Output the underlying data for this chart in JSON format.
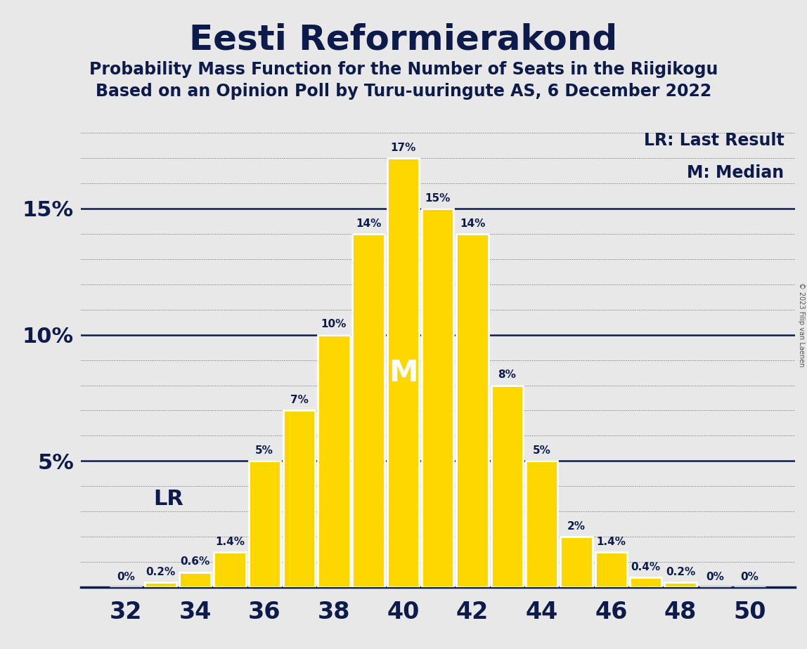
{
  "title": "Eesti Reformierakond",
  "subtitle1": "Probability Mass Function for the Number of Seats in the Riigikogu",
  "subtitle2": "Based on an Opinion Poll by Turu-uuringute AS, 6 December 2022",
  "copyright": "© 2023 Filip van Laenen",
  "seats": [
    32,
    33,
    34,
    35,
    36,
    37,
    38,
    39,
    40,
    41,
    42,
    43,
    44,
    45,
    46,
    47,
    48,
    49,
    50
  ],
  "probabilities": [
    0.0,
    0.2,
    0.6,
    1.4,
    5.0,
    7.0,
    10.0,
    14.0,
    17.0,
    15.0,
    14.0,
    8.0,
    5.0,
    2.0,
    1.4,
    0.4,
    0.2,
    0.0,
    0.0
  ],
  "bar_color": "#FFD700",
  "bar_edge_color": "#FFFFFF",
  "background_color": "#E8E8E8",
  "text_color": "#0D1B4B",
  "median_seat": 40,
  "last_result_seat": 34,
  "legend_lr": "LR: Last Result",
  "legend_m": "M: Median",
  "ylim_max": 18.5,
  "ytick_solid": [
    5,
    10,
    15
  ],
  "xtick_min": 32,
  "xtick_max": 50,
  "xtick_step": 2,
  "bar_label_fontsize": 11,
  "ytick_fontsize": 22,
  "xtick_fontsize": 24,
  "title_fontsize": 36,
  "subtitle_fontsize": 17,
  "legend_fontsize": 17,
  "M_fontsize": 30,
  "LR_fontsize": 22
}
